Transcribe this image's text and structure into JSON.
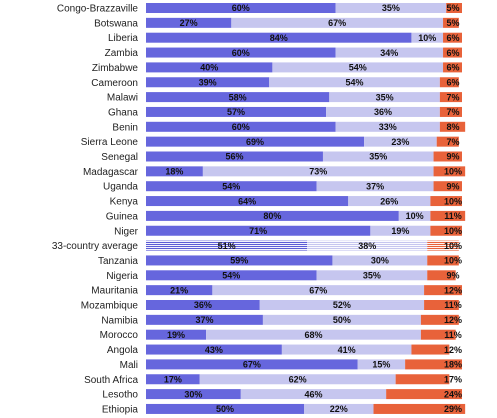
{
  "colors": {
    "series_1": "#6666dd",
    "series_2": "#c6c6ef",
    "series_3": "#e8623a",
    "highlight_pattern": "#5c5cd6"
  },
  "chart_data": {
    "type": "bar",
    "orientation": "horizontal",
    "stacked": true,
    "grid": false,
    "legend": "none",
    "xlim": [
      0,
      100
    ],
    "highlight_category": "33-country average",
    "categories": [
      "Congo-Brazzaville",
      "Botswana",
      "Liberia",
      "Zambia",
      "Zimbabwe",
      "Cameroon",
      "Malawi",
      "Ghana",
      "Benin",
      "Sierra Leone",
      "Senegal",
      "Madagascar",
      "Uganda",
      "Kenya",
      "Guinea",
      "Niger",
      "33-country average",
      "Tanzania",
      "Nigeria",
      "Mauritania",
      "Mozambique",
      "Namibia",
      "Morocco",
      "Angola",
      "Mali",
      "South Africa",
      "Lesotho",
      "Ethiopia"
    ],
    "series": [
      {
        "values": [
          60,
          27,
          84,
          60,
          40,
          39,
          58,
          57,
          60,
          69,
          56,
          18,
          54,
          64,
          80,
          71,
          51,
          59,
          54,
          21,
          36,
          37,
          19,
          43,
          67,
          17,
          30,
          50
        ],
        "labels": [
          "60%",
          "27%",
          "84%",
          "60%",
          "40%",
          "39%",
          "58%",
          "57%",
          "60%",
          "69%",
          "56%",
          "18%",
          "54%",
          "64%",
          "80%",
          "71%",
          "51%",
          "59%",
          "54%",
          "21%",
          "36%",
          "37%",
          "19%",
          "43%",
          "67%",
          "17%",
          "30%",
          "50%"
        ]
      },
      {
        "values": [
          35,
          67,
          10,
          34,
          54,
          54,
          35,
          36,
          33,
          23,
          35,
          73,
          37,
          26,
          10,
          19,
          38,
          30,
          35,
          67,
          52,
          50,
          68,
          41,
          15,
          62,
          46,
          22
        ],
        "labels": [
          "35%",
          "67%",
          "10%",
          "34%",
          "54%",
          "54%",
          "35%",
          "36%",
          "33%",
          "23%",
          "35%",
          "73%",
          "37%",
          "26%",
          "10%",
          "19%",
          "38%",
          "30%",
          "35%",
          "67%",
          "52%",
          "50%",
          "68%",
          "41%",
          "15%",
          "62%",
          "46%",
          "22%"
        ]
      },
      {
        "values": [
          5,
          5,
          6,
          6,
          6,
          6,
          7,
          7,
          8,
          7,
          9,
          10,
          9,
          10,
          11,
          10,
          10,
          10,
          9,
          12,
          11,
          12,
          11,
          12,
          18,
          17,
          24,
          29
        ],
        "labels": [
          "5%",
          "5%",
          "6%",
          "6%",
          "6%",
          "6%",
          "7%",
          "7%",
          "8%",
          "7%",
          "9%",
          "10%",
          "9%",
          "10%",
          "11%",
          "10%",
          "10%",
          "10%",
          "9%",
          "12%",
          "11%",
          "12%",
          "11%",
          "12%",
          "18%",
          "17%",
          "24%",
          "29%"
        ]
      }
    ]
  }
}
